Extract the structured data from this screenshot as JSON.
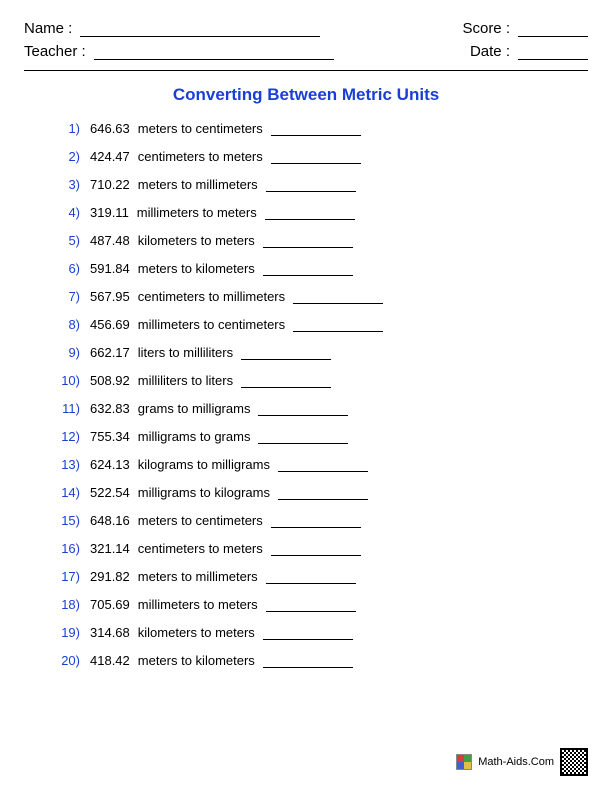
{
  "header": {
    "name_label": "Name :",
    "teacher_label": "Teacher :",
    "score_label": "Score :",
    "date_label": "Date :"
  },
  "title": {
    "text": "Converting Between Metric Units",
    "color": "#1a3fd6"
  },
  "style": {
    "number_color": "#1a3fd6",
    "text_color": "#000000",
    "background_color": "#ffffff",
    "answer_blank_width": 90,
    "font_size_body": 13,
    "font_size_title": 17,
    "font_size_header": 15
  },
  "problems": [
    {
      "n": "1)",
      "value": "646.63",
      "conversion": "meters to centimeters"
    },
    {
      "n": "2)",
      "value": "424.47",
      "conversion": "centimeters to meters"
    },
    {
      "n": "3)",
      "value": "710.22",
      "conversion": "meters to millimeters"
    },
    {
      "n": "4)",
      "value": "319.11",
      "conversion": "millimeters to meters"
    },
    {
      "n": "5)",
      "value": "487.48",
      "conversion": "kilometers to meters"
    },
    {
      "n": "6)",
      "value": "591.84",
      "conversion": "meters to kilometers"
    },
    {
      "n": "7)",
      "value": "567.95",
      "conversion": "centimeters to millimeters"
    },
    {
      "n": "8)",
      "value": "456.69",
      "conversion": "millimeters to centimeters"
    },
    {
      "n": "9)",
      "value": "662.17",
      "conversion": "liters to milliliters"
    },
    {
      "n": "10)",
      "value": "508.92",
      "conversion": "milliliters to liters"
    },
    {
      "n": "11)",
      "value": "632.83",
      "conversion": "grams to milligrams"
    },
    {
      "n": "12)",
      "value": "755.34",
      "conversion": "milligrams to grams"
    },
    {
      "n": "13)",
      "value": "624.13",
      "conversion": "kilograms to milligrams"
    },
    {
      "n": "14)",
      "value": "522.54",
      "conversion": "milligrams to kilograms"
    },
    {
      "n": "15)",
      "value": "648.16",
      "conversion": "meters to centimeters"
    },
    {
      "n": "16)",
      "value": "321.14",
      "conversion": "centimeters to meters"
    },
    {
      "n": "17)",
      "value": "291.82",
      "conversion": "meters to millimeters"
    },
    {
      "n": "18)",
      "value": "705.69",
      "conversion": "millimeters to meters"
    },
    {
      "n": "19)",
      "value": "314.68",
      "conversion": "kilometers to meters"
    },
    {
      "n": "20)",
      "value": "418.42",
      "conversion": "meters to kilometers"
    }
  ],
  "footer": {
    "site": "Math-Aids.Com"
  }
}
